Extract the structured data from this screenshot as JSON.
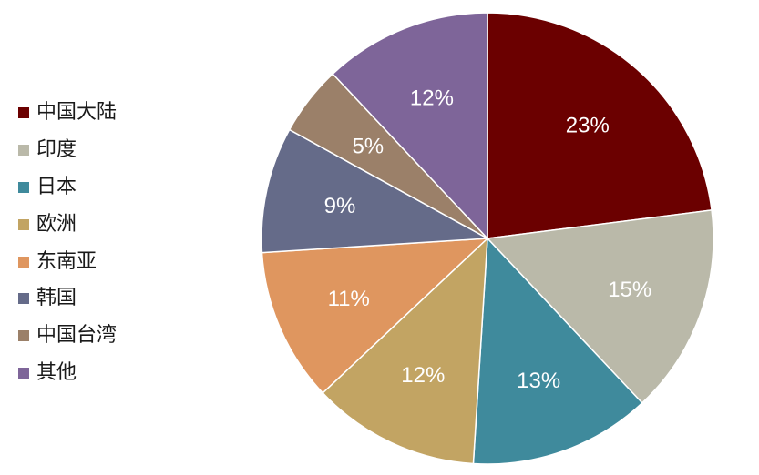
{
  "chart_data": {
    "type": "pie",
    "start_angle_deg": 0,
    "direction": "clockwise",
    "legend_position": "left",
    "slices": [
      {
        "label": "中国大陆",
        "value": 23,
        "display": "23%",
        "color": "#6b0000"
      },
      {
        "label": "印度",
        "value": 15,
        "display": "15%",
        "color": "#bab9a9"
      },
      {
        "label": "日本",
        "value": 13,
        "display": "13%",
        "color": "#3f8a9c"
      },
      {
        "label": "欧洲",
        "value": 12,
        "display": "12%",
        "color": "#c2a463"
      },
      {
        "label": "东南亚",
        "value": 11,
        "display": "11%",
        "color": "#df965f"
      },
      {
        "label": "韩国",
        "value": 9,
        "display": "9%",
        "color": "#656b89"
      },
      {
        "label": "中国台湾",
        "value": 5,
        "display": "5%",
        "color": "#9b8069"
      },
      {
        "label": "其他",
        "value": 12,
        "display": "12%",
        "color": "#7e6599"
      }
    ]
  }
}
